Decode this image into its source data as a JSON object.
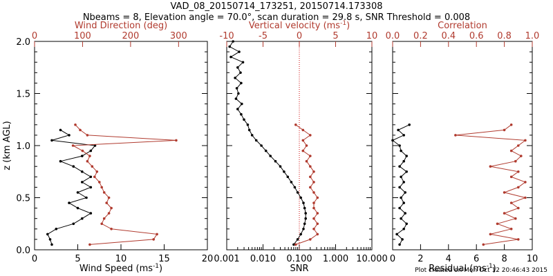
{
  "header": {
    "title": "VAD_08_20150714_173251, 20150714.173308",
    "subtitle": "Nbeams = 8, Elevation angle = 70.0°, scan duration = 29.8 s, SNR Threshold = 0.008",
    "footer": "Plot created on Mon Oct 12 20:46:43 2015"
  },
  "colors": {
    "primary": "#000000",
    "secondary": "#b03a2e",
    "vline": "#cc0000"
  },
  "chart_data": [
    {
      "type": "line",
      "ylabel": "z (km AGL)",
      "ylim": [
        0,
        2.0
      ],
      "yticks": [
        "0.0",
        "0.5",
        "1.0",
        "1.5",
        "2.0"
      ],
      "bottom_axis": {
        "label_main": "Wind Speed (ms",
        "label_sup": "-1",
        "label_end": ")",
        "range": [
          0,
          20
        ],
        "ticks": [
          "0",
          "5",
          "10",
          "15",
          "20"
        ]
      },
      "top_axis": {
        "label_main": "Wind Direction (deg)",
        "label_sup": "",
        "label_end": "",
        "range": [
          0,
          360
        ],
        "ticks": [
          "0",
          "100",
          "200",
          "300"
        ]
      },
      "series": [
        {
          "axis": "bottom",
          "color": "#000000",
          "z": [
            0.05,
            0.1,
            0.15,
            0.2,
            0.25,
            0.3,
            0.35,
            0.4,
            0.45,
            0.5,
            0.55,
            0.6,
            0.65,
            0.7,
            0.75,
            0.8,
            0.85,
            0.9,
            0.95,
            1.0,
            1.05,
            1.1,
            1.15
          ],
          "values": [
            2.0,
            1.8,
            1.5,
            2.5,
            4.5,
            5.5,
            6.5,
            5.0,
            4.0,
            6.0,
            5.0,
            6.5,
            5.5,
            6.5,
            5.5,
            4.5,
            3.0,
            5.5,
            6.5,
            7.0,
            2.0,
            4.0,
            3.0
          ]
        },
        {
          "axis": "top",
          "color": "#b03a2e",
          "z": [
            0.05,
            0.1,
            0.15,
            0.2,
            0.25,
            0.3,
            0.35,
            0.4,
            0.45,
            0.5,
            0.55,
            0.6,
            0.65,
            0.7,
            0.75,
            0.8,
            0.85,
            0.9,
            0.95,
            1.0,
            1.05,
            1.1,
            1.15,
            1.2
          ],
          "values": [
            115,
            248,
            255,
            160,
            140,
            145,
            155,
            160,
            150,
            155,
            145,
            140,
            135,
            125,
            130,
            120,
            110,
            115,
            100,
            80,
            295,
            110,
            95,
            85
          ]
        }
      ]
    },
    {
      "type": "line",
      "ylim": [
        0,
        2.0
      ],
      "bottom_axis": {
        "label_main": "SNR",
        "label_sup": "",
        "label_end": "",
        "scale": "log",
        "range": [
          0.001,
          10
        ],
        "ticks": [
          "0.001",
          "0.010",
          "0.100",
          "1.000",
          "10.000"
        ]
      },
      "top_axis": {
        "label_main": "Vertical velocity (ms",
        "label_sup": "-1",
        "label_end": ")",
        "range": [
          -10,
          10
        ],
        "ticks": [
          "-10",
          "-5",
          "0",
          "5",
          "10"
        ]
      },
      "reference_line": {
        "axis": "top",
        "value": 0
      },
      "series": [
        {
          "axis": "bottom",
          "color": "#000000",
          "z": [
            0.05,
            0.1,
            0.15,
            0.2,
            0.25,
            0.3,
            0.35,
            0.4,
            0.45,
            0.5,
            0.55,
            0.6,
            0.65,
            0.7,
            0.75,
            0.8,
            0.85,
            0.9,
            0.95,
            1.0,
            1.05,
            1.1,
            1.15,
            1.2,
            1.25,
            1.3,
            1.35,
            1.4,
            1.45,
            1.5,
            1.55,
            1.6,
            1.65,
            1.7,
            1.75,
            1.8,
            1.85,
            1.9,
            1.95,
            2.0
          ],
          "values": [
            0.07,
            0.09,
            0.11,
            0.13,
            0.14,
            0.15,
            0.15,
            0.14,
            0.13,
            0.11,
            0.09,
            0.075,
            0.06,
            0.048,
            0.038,
            0.03,
            0.022,
            0.016,
            0.012,
            0.009,
            0.0065,
            0.005,
            0.0042,
            0.0038,
            0.003,
            0.0025,
            0.002,
            0.0026,
            0.0018,
            0.0021,
            0.0019,
            0.0025,
            0.0017,
            0.0024,
            0.002,
            0.0028,
            0.0013,
            0.0022,
            0.0012,
            0.0015
          ]
        },
        {
          "axis": "top",
          "color": "#b03a2e",
          "z": [
            0.05,
            0.1,
            0.15,
            0.2,
            0.25,
            0.3,
            0.35,
            0.4,
            0.45,
            0.5,
            0.55,
            0.6,
            0.65,
            0.7,
            0.75,
            0.8,
            0.85,
            0.9,
            0.95,
            1.0,
            1.05,
            1.1,
            1.15,
            1.2
          ],
          "values": [
            -0.5,
            1.5,
            2.5,
            2.0,
            2.5,
            2.0,
            2.5,
            2.0,
            2.0,
            2.5,
            2.0,
            1.5,
            2.0,
            1.5,
            2.0,
            1.5,
            1.0,
            1.5,
            0.5,
            1.0,
            0.5,
            1.5,
            0.5,
            -0.5
          ]
        }
      ]
    },
    {
      "type": "line",
      "ylim": [
        0,
        2.0
      ],
      "bottom_axis": {
        "label_main": "Residual (ms",
        "label_sup": "-1",
        "label_end": ")",
        "range": [
          0,
          10
        ],
        "ticks": [
          "0",
          "2",
          "4",
          "6",
          "8",
          "10"
        ]
      },
      "top_axis": {
        "label_main": "Correlation",
        "label_sup": "",
        "label_end": "",
        "range": [
          0,
          1.0
        ],
        "ticks": [
          "0.0",
          "0.2",
          "0.4",
          "0.6",
          "0.8",
          "1.0"
        ]
      },
      "series": [
        {
          "axis": "bottom",
          "color": "#000000",
          "z": [
            0.05,
            0.1,
            0.15,
            0.2,
            0.25,
            0.3,
            0.35,
            0.4,
            0.45,
            0.5,
            0.55,
            0.6,
            0.65,
            0.7,
            0.75,
            0.8,
            0.85,
            0.9,
            0.95,
            1.0,
            1.05,
            1.1,
            1.15,
            1.2
          ],
          "values": [
            0.5,
            0.7,
            0.3,
            0.8,
            1.0,
            0.6,
            0.9,
            0.5,
            0.8,
            0.6,
            0.9,
            0.5,
            0.8,
            0.6,
            1.0,
            0.5,
            0.8,
            1.0,
            0.6,
            0.5,
            0.0,
            0.8,
            0.4,
            1.2
          ]
        },
        {
          "axis": "top",
          "color": "#b03a2e",
          "z": [
            0.05,
            0.1,
            0.15,
            0.2,
            0.25,
            0.3,
            0.35,
            0.4,
            0.45,
            0.5,
            0.55,
            0.6,
            0.65,
            0.7,
            0.75,
            0.8,
            0.85,
            0.9,
            0.95,
            1.0,
            1.05,
            1.1,
            1.15,
            1.2
          ],
          "values": [
            0.65,
            0.9,
            0.7,
            0.85,
            0.75,
            0.88,
            0.8,
            0.9,
            0.85,
            0.95,
            0.8,
            0.9,
            0.95,
            0.85,
            0.9,
            0.7,
            0.88,
            0.92,
            0.85,
            0.9,
            0.95,
            0.45,
            0.8,
            0.85
          ]
        }
      ]
    }
  ]
}
